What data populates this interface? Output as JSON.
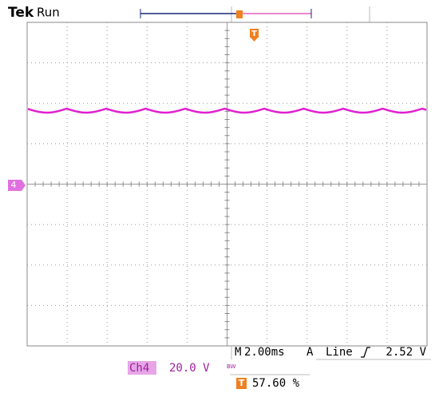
{
  "header": {
    "brand": "Tek",
    "status": "Run"
  },
  "channel_marker": "4",
  "trigger_marker": "T",
  "footer": {
    "timebase_prefix": "M",
    "timebase": "2.00ms",
    "trigger_source": "A",
    "trigger_type": "Line",
    "trigger_level": "2.52 V",
    "channel": "Ch4",
    "volts_per_div": "20.0 V",
    "bandwidth": "BW",
    "trigger_position_label": "T",
    "trigger_position": "57.60 %"
  }
}
